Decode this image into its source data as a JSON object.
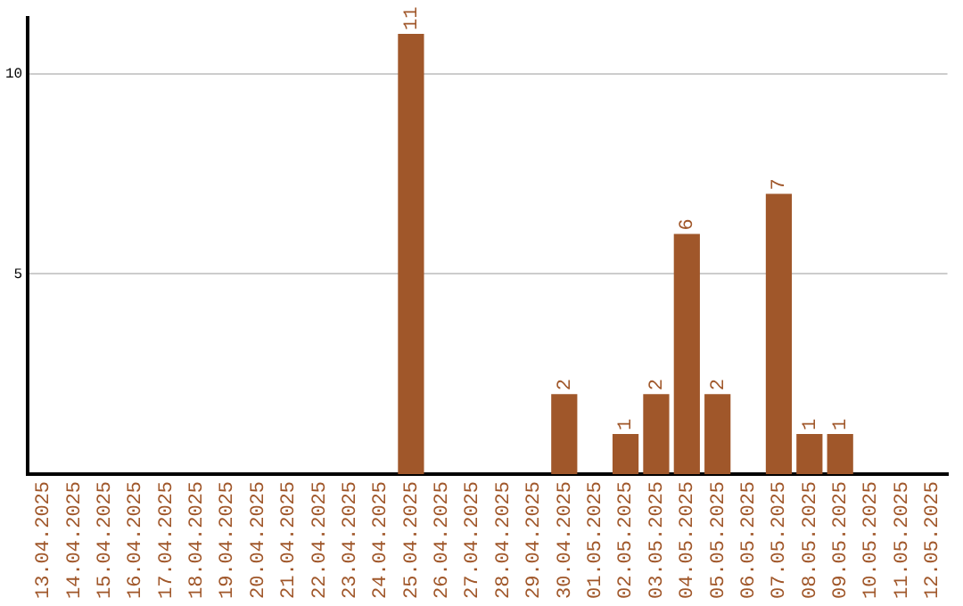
{
  "chart_data": {
    "type": "bar",
    "categories": [
      "13.04.2025",
      "14.04.2025",
      "15.04.2025",
      "16.04.2025",
      "17.04.2025",
      "18.04.2025",
      "19.04.2025",
      "20.04.2025",
      "21.04.2025",
      "22.04.2025",
      "23.04.2025",
      "24.04.2025",
      "25.04.2025",
      "26.04.2025",
      "27.04.2025",
      "28.04.2025",
      "29.04.2025",
      "30.04.2025",
      "01.05.2025",
      "02.05.2025",
      "03.05.2025",
      "04.05.2025",
      "05.05.2025",
      "06.05.2025",
      "07.05.2025",
      "08.05.2025",
      "09.05.2025",
      "10.05.2025",
      "11.05.2025",
      "12.05.2025"
    ],
    "values": [
      0,
      0,
      0,
      0,
      0,
      0,
      0,
      0,
      0,
      0,
      0,
      0,
      11,
      0,
      0,
      0,
      0,
      2,
      0,
      1,
      2,
      6,
      2,
      0,
      7,
      1,
      1,
      0,
      0,
      0
    ],
    "value_labels": [
      null,
      null,
      null,
      null,
      null,
      null,
      null,
      null,
      null,
      null,
      null,
      null,
      "11",
      null,
      null,
      null,
      null,
      "2",
      null,
      "1",
      "2",
      "6",
      "2",
      null,
      "7",
      "1",
      "1",
      null,
      null,
      null
    ],
    "color": "#a0572a",
    "ylim": [
      0,
      11.4
    ],
    "yticks": [
      5,
      10
    ],
    "grid": "y",
    "legend": false
  }
}
